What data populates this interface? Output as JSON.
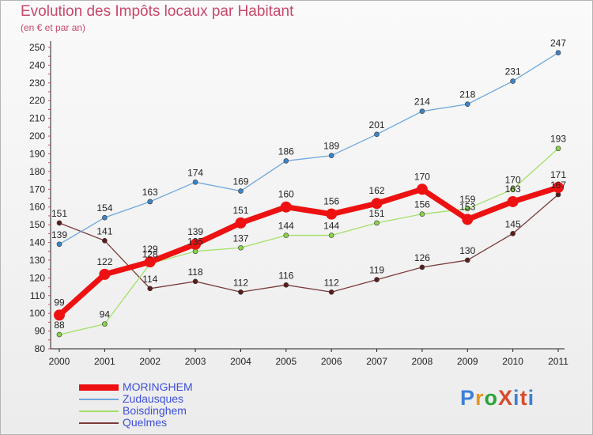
{
  "title": "Evolution des Impôts locaux par Habitant",
  "subtitle": "(en € et par an)",
  "logo": {
    "text": "ProXiti",
    "colors": [
      "#3d7fd6",
      "#e8961e",
      "#2aa33c",
      "#d94b2e",
      "#3d7fd6",
      "#d94b2e",
      "#3d7fd6"
    ]
  },
  "chart_data": {
    "type": "line",
    "title": "Evolution des Impôts locaux par Habitant",
    "subtitle": "(en € et par an)",
    "x": [
      "2000",
      "2001",
      "2002",
      "2003",
      "2004",
      "2005",
      "2006",
      "2007",
      "2008",
      "2009",
      "2010",
      "2011"
    ],
    "ylim": [
      80,
      250
    ],
    "yticks": [
      80,
      90,
      100,
      110,
      120,
      130,
      140,
      150,
      160,
      170,
      180,
      190,
      200,
      210,
      220,
      230,
      240,
      250
    ],
    "grid": false,
    "legend_position": "bottom-left",
    "series": [
      {
        "name": "MORINGHEM",
        "color": "#ee1111",
        "marker": "#ee1111",
        "width": 7,
        "values": [
          99,
          122,
          129,
          139,
          151,
          160,
          156,
          162,
          170,
          153,
          163,
          171
        ],
        "labels": [
          "99",
          "122",
          "129",
          "139",
          "151",
          "160",
          "156",
          "162",
          "170",
          "153",
          "163",
          "171"
        ]
      },
      {
        "name": "Zudausques",
        "color": "#6fa8dc",
        "marker": "#3d85c6",
        "width": 1.3,
        "values": [
          139,
          154,
          163,
          174,
          169,
          186,
          189,
          201,
          214,
          218,
          231,
          247
        ],
        "labels": [
          "139",
          "154",
          "163",
          "174",
          "169",
          "186",
          "189",
          "201",
          "214",
          "218",
          "231",
          "247"
        ]
      },
      {
        "name": "Boisdinghem",
        "color": "#a4e06a",
        "marker": "#8bd34a",
        "width": 1.3,
        "values": [
          88,
          94,
          128,
          135,
          137,
          144,
          144,
          151,
          156,
          159,
          170,
          193
        ],
        "labels": [
          "88",
          "94",
          "128",
          "135",
          "137",
          "144",
          "144",
          "151",
          "156",
          "159",
          "170",
          "193"
        ]
      },
      {
        "name": "Quelmes",
        "color": "#7a3b3b",
        "marker": "#5a1d1d",
        "width": 1.3,
        "values": [
          151,
          141,
          114,
          118,
          112,
          116,
          112,
          119,
          126,
          130,
          145,
          167
        ],
        "labels": [
          "151",
          "141",
          "114",
          "118",
          "112",
          "116",
          "112",
          "119",
          "126",
          "130",
          "145",
          "167"
        ]
      }
    ]
  }
}
